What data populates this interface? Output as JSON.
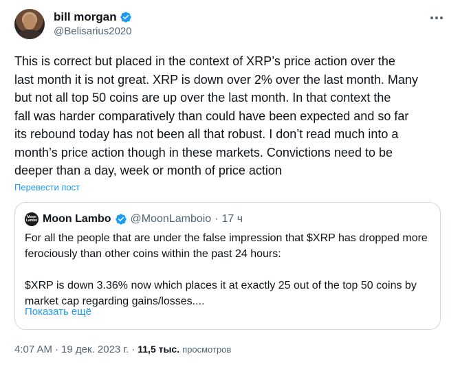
{
  "author": {
    "display_name": "bill morgan",
    "handle": "@Belisarius2020",
    "verified_icon": "verified-badge-icon"
  },
  "tweet": {
    "text": "This is correct but placed in the context of XRP’s price action over the\nlast month it is not great. XRP is down over 2% over the last month. Many\nbut not all top 50 coins are up over the last month. In that context the\nfall was harder comparatively than could have been expected and so far\nits rebound today has not been all that robust. I don’t read much into a\nmonth’s price action though in these markets. Convictions need to be\ndeeper than a day, week or month of price action",
    "translate_label": "Перевести пост"
  },
  "quote": {
    "avatar_text": "Moon Lambo",
    "display_name": "Moon Lambo",
    "handle": "@MoonLamboio",
    "separator": "·",
    "time": "17 ч",
    "paragraph_1": "For all the people that are under the false impression that $XRP has dropped more ferociously than other coins within the past 24 hours:",
    "paragraph_2": "$XRP is down 3.36% now which places it at exactly 25 out of the top 50 coins by market cap regarding gains/losses....",
    "show_more_label": "Показать ещё"
  },
  "meta": {
    "time": "4:07 AM",
    "separator": "·",
    "date": "19 дек. 2023 г.",
    "separator2": "·",
    "views_count": "11,5 тыс.",
    "views_label": "просмотров"
  },
  "colors": {
    "accent": "#1d9bf0",
    "muted": "#536471",
    "text": "#0f1419",
    "border": "#cfd9de"
  }
}
